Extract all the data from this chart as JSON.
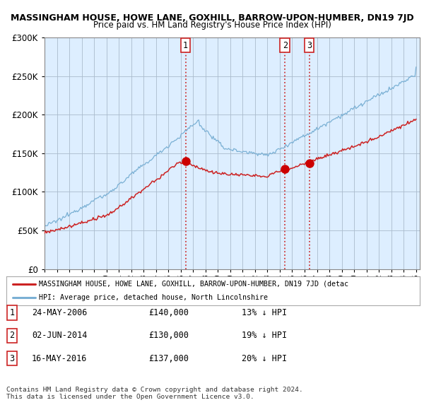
{
  "title": "MASSINGHAM HOUSE, HOWE LANE, GOXHILL, BARROW-UPON-HUMBER, DN19 7JD",
  "subtitle": "Price paid vs. HM Land Registry's House Price Index (HPI)",
  "ylim": [
    0,
    300000
  ],
  "yticks": [
    0,
    50000,
    100000,
    150000,
    200000,
    250000,
    300000
  ],
  "ytick_labels": [
    "£0",
    "£50K",
    "£100K",
    "£150K",
    "£200K",
    "£250K",
    "£300K"
  ],
  "sale_dates_num": [
    2006.39,
    2014.42,
    2016.37
  ],
  "sale_prices": [
    140000,
    130000,
    137000
  ],
  "sale_labels": [
    "1",
    "2",
    "3"
  ],
  "vline_color": "#cc2222",
  "dot_color": "#cc0000",
  "hpi_color": "#7ab0d4",
  "sale_line_color": "#cc2222",
  "plot_bg_color": "#ddeeff",
  "legend_entries": [
    "MASSINGHAM HOUSE, HOWE LANE, GOXHILL, BARROW-UPON-HUMBER, DN19 7JD (detac",
    "HPI: Average price, detached house, North Lincolnshire"
  ],
  "table_data": [
    [
      "1",
      "24-MAY-2006",
      "£140,000",
      "13% ↓ HPI"
    ],
    [
      "2",
      "02-JUN-2014",
      "£130,000",
      "19% ↓ HPI"
    ],
    [
      "3",
      "16-MAY-2016",
      "£137,000",
      "20% ↓ HPI"
    ]
  ],
  "footer": "Contains HM Land Registry data © Crown copyright and database right 2024.\nThis data is licensed under the Open Government Licence v3.0.",
  "bg_color": "#ffffff",
  "grid_color": "#aabbcc"
}
